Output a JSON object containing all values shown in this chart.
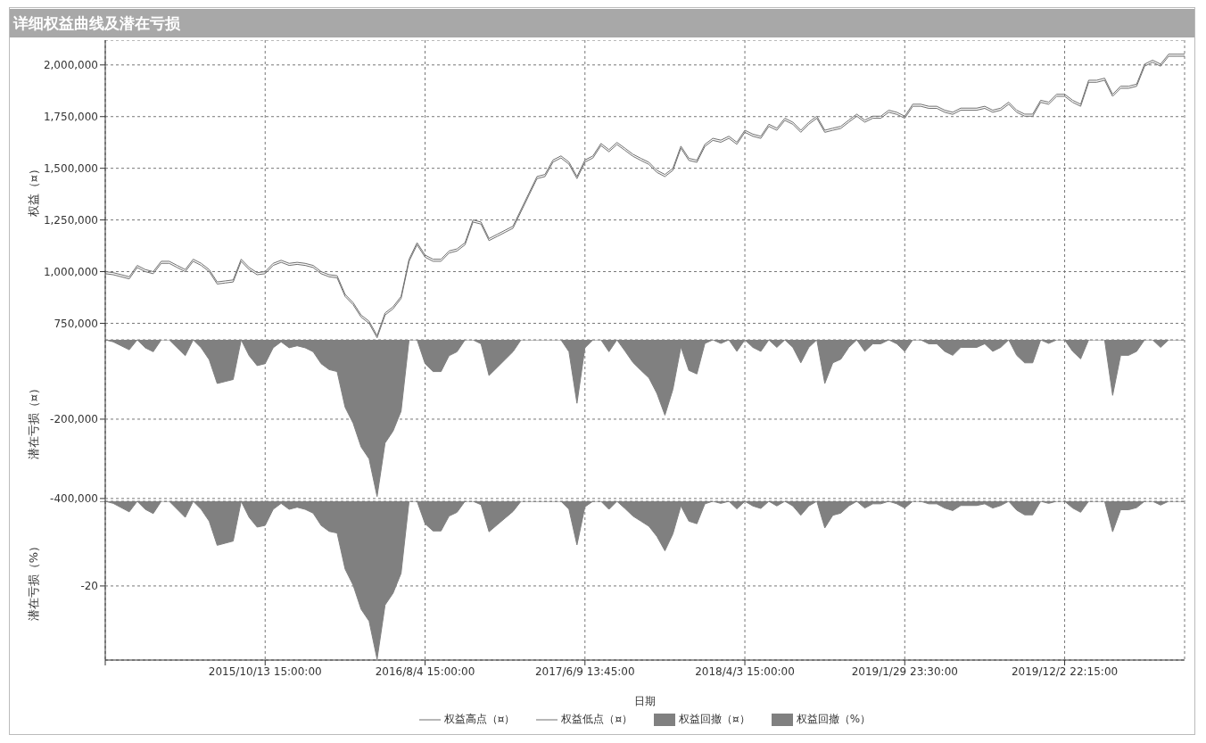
{
  "chart_data": [
    {
      "type": "line",
      "title": "详细权益曲线及潜在亏损",
      "ylabel": "权益（¤）",
      "grid": true,
      "legend": "bottom",
      "tick_labels": "y",
      "ylim": [
        670000,
        2120000
      ],
      "yticks": [
        {
          "value": 750000,
          "label": "750,000"
        },
        {
          "value": 1000000,
          "label": "1,000,000"
        },
        {
          "value": 1250000,
          "label": "1,250,000"
        },
        {
          "value": 1500000,
          "label": "1,500,000"
        },
        {
          "value": 1750000,
          "label": "1,750,000"
        },
        {
          "value": 2000000,
          "label": "2,000,000"
        }
      ],
      "categories": [
        null,
        null,
        null,
        null,
        null,
        null,
        null,
        null,
        null,
        null,
        null,
        null,
        null,
        null,
        null,
        null,
        null,
        null,
        null,
        null,
        "2015/10/13 15:00:00",
        null,
        null,
        null,
        null,
        null,
        null,
        null,
        null,
        null,
        null,
        null,
        null,
        null,
        null,
        null,
        null,
        null,
        null,
        null,
        "2016/8/4 15:00:00",
        null,
        null,
        null,
        null,
        null,
        null,
        null,
        null,
        null,
        null,
        null,
        null,
        null,
        null,
        null,
        null,
        null,
        null,
        null,
        "2017/6/9 13:45:00",
        null,
        null,
        null,
        null,
        null,
        null,
        null,
        null,
        null,
        null,
        null,
        null,
        null,
        null,
        null,
        null,
        null,
        null,
        null,
        "2018/4/3 15:00:00",
        null,
        null,
        null,
        null,
        null,
        null,
        null,
        null,
        null,
        null,
        null,
        null,
        null,
        null,
        null,
        null,
        null,
        null,
        null,
        "2019/1/29 23:30:00",
        null,
        null,
        null,
        null,
        null,
        null,
        null,
        null,
        null,
        null,
        null,
        null,
        null,
        null,
        null,
        null,
        null,
        null,
        null,
        "2019/12/2 22:15:00",
        null,
        null,
        null,
        null,
        null,
        null,
        null,
        null,
        null,
        null,
        null,
        null,
        null,
        null,
        null
      ],
      "series": [
        {
          "name": "权益高点（¤）",
          "color": "#707070",
          "values": [
            1000000,
            995000,
            985000,
            975000,
            1030000,
            1010000,
            1000000,
            1050000,
            1050000,
            1030000,
            1010000,
            1060000,
            1040000,
            1010000,
            950000,
            955000,
            960000,
            1060000,
            1020000,
            995000,
            1000000,
            1040000,
            1055000,
            1040000,
            1045000,
            1040000,
            1030000,
            1000000,
            985000,
            980000,
            890000,
            850000,
            790000,
            760000,
            690000,
            800000,
            830000,
            880000,
            1060000,
            1140000,
            1080000,
            1060000,
            1060000,
            1100000,
            1110000,
            1140000,
            1250000,
            1240000,
            1160000,
            1180000,
            1200000,
            1220000,
            1300000,
            1380000,
            1460000,
            1470000,
            1540000,
            1560000,
            1530000,
            1460000,
            1540000,
            1560000,
            1620000,
            1590000,
            1625000,
            1597000,
            1568000,
            1548000,
            1529000,
            1490000,
            1470000,
            1500000,
            1607000,
            1548000,
            1539000,
            1616000,
            1645000,
            1636000,
            1655000,
            1626000,
            1684000,
            1665000,
            1655000,
            1713000,
            1694000,
            1742000,
            1723000,
            1684000,
            1723000,
            1752000,
            1684000,
            1694000,
            1703000,
            1733000,
            1762000,
            1733000,
            1752000,
            1752000,
            1781000,
            1771000,
            1752000,
            1810000,
            1810000,
            1800000,
            1800000,
            1781000,
            1771000,
            1791000,
            1791000,
            1791000,
            1800000,
            1781000,
            1791000,
            1820000,
            1781000,
            1762000,
            1762000,
            1829000,
            1820000,
            1858000,
            1858000,
            1829000,
            1810000,
            1926000,
            1926000,
            1936000,
            1858000,
            1897000,
            1897000,
            1907000,
            2004000,
            2023000,
            2004000,
            2052000,
            2052000,
            2052000
          ]
        },
        {
          "name": "权益低点（¤）",
          "color": "#707070",
          "values": [
            990000,
            985000,
            975000,
            965000,
            1020000,
            1000000,
            990000,
            1040000,
            1040000,
            1020000,
            1000000,
            1050000,
            1030000,
            1000000,
            940000,
            945000,
            950000,
            1050000,
            1010000,
            985000,
            990000,
            1030000,
            1045000,
            1030000,
            1035000,
            1030000,
            1020000,
            990000,
            975000,
            970000,
            880000,
            840000,
            780000,
            750000,
            680000,
            790000,
            820000,
            870000,
            1050000,
            1130000,
            1070000,
            1050000,
            1050000,
            1090000,
            1100000,
            1130000,
            1240000,
            1230000,
            1150000,
            1170000,
            1190000,
            1210000,
            1290000,
            1370000,
            1450000,
            1460000,
            1530000,
            1550000,
            1520000,
            1450000,
            1530000,
            1550000,
            1610000,
            1580000,
            1615000,
            1587000,
            1558000,
            1538000,
            1519000,
            1480000,
            1460000,
            1490000,
            1597000,
            1538000,
            1529000,
            1606000,
            1635000,
            1626000,
            1645000,
            1616000,
            1674000,
            1655000,
            1645000,
            1703000,
            1684000,
            1732000,
            1713000,
            1674000,
            1713000,
            1742000,
            1674000,
            1684000,
            1693000,
            1723000,
            1752000,
            1723000,
            1742000,
            1742000,
            1771000,
            1761000,
            1742000,
            1800000,
            1800000,
            1790000,
            1790000,
            1771000,
            1761000,
            1781000,
            1781000,
            1781000,
            1790000,
            1771000,
            1781000,
            1810000,
            1771000,
            1752000,
            1752000,
            1819000,
            1810000,
            1848000,
            1848000,
            1819000,
            1800000,
            1916000,
            1916000,
            1926000,
            1848000,
            1887000,
            1887000,
            1897000,
            1994000,
            2013000,
            1994000,
            2042000,
            2042000,
            2042000
          ]
        }
      ]
    },
    {
      "type": "area",
      "ylabel": "潜在亏损（¤）",
      "grid": true,
      "legend": "bottom",
      "tick_labels": "y",
      "ylim": [
        -407000,
        0
      ],
      "yticks": [
        {
          "value": -400000,
          "label": "-400,000"
        },
        {
          "value": -200000,
          "label": "-200,000"
        }
      ],
      "categories": [
        null,
        null,
        null,
        null,
        null,
        null,
        null,
        null,
        null,
        null,
        null,
        null,
        null,
        null,
        null,
        null,
        null,
        null,
        null,
        null,
        "2015/10/13 15:00:00",
        null,
        null,
        null,
        null,
        null,
        null,
        null,
        null,
        null,
        null,
        null,
        null,
        null,
        null,
        null,
        null,
        null,
        null,
        null,
        "2016/8/4 15:00:00",
        null,
        null,
        null,
        null,
        null,
        null,
        null,
        null,
        null,
        null,
        null,
        null,
        null,
        null,
        null,
        null,
        null,
        null,
        null,
        "2017/6/9 13:45:00",
        null,
        null,
        null,
        null,
        null,
        null,
        null,
        null,
        null,
        null,
        null,
        null,
        null,
        null,
        null,
        null,
        null,
        null,
        null,
        "2018/4/3 15:00:00",
        null,
        null,
        null,
        null,
        null,
        null,
        null,
        null,
        null,
        null,
        null,
        null,
        null,
        null,
        null,
        null,
        null,
        null,
        null,
        "2019/1/29 23:30:00",
        null,
        null,
        null,
        null,
        null,
        null,
        null,
        null,
        null,
        null,
        null,
        null,
        null,
        null,
        null,
        null,
        null,
        null,
        null,
        "2019/12/2 22:15:00",
        null,
        null,
        null,
        null,
        null,
        null,
        null,
        null,
        null,
        null,
        null,
        null,
        null,
        null,
        null
      ],
      "series": [
        {
          "name": "权益回撤（¤）",
          "color": "#808080",
          "values": [
            0,
            -5000,
            -15000,
            -25000,
            0,
            -20000,
            -30000,
            0,
            0,
            -20000,
            -40000,
            0,
            -20000,
            -50000,
            -110000,
            -105000,
            -100000,
            0,
            -40000,
            -65000,
            -60000,
            -20000,
            -5000,
            -20000,
            -15000,
            -20000,
            -30000,
            -60000,
            -75000,
            -80000,
            -170000,
            -210000,
            -270000,
            -300000,
            -395000,
            -260000,
            -230000,
            -180000,
            0,
            0,
            -60000,
            -80000,
            -80000,
            -40000,
            -30000,
            0,
            0,
            -10000,
            -90000,
            -70000,
            -50000,
            -30000,
            0,
            0,
            0,
            0,
            0,
            0,
            -30000,
            -160000,
            -20000,
            0,
            0,
            -30000,
            0,
            -28000,
            -57000,
            -77000,
            -96000,
            -135000,
            -190000,
            -125000,
            -18000,
            -77000,
            -86000,
            -9000,
            0,
            -9000,
            0,
            -29000,
            0,
            -19000,
            -29000,
            0,
            -19000,
            0,
            -19000,
            -58000,
            -19000,
            0,
            -110000,
            -58000,
            -49000,
            -19000,
            0,
            -29000,
            -10000,
            -10000,
            0,
            -10000,
            -29000,
            0,
            0,
            -10000,
            -10000,
            -29000,
            -39000,
            -19000,
            -19000,
            -19000,
            -10000,
            -29000,
            -19000,
            0,
            -39000,
            -58000,
            -58000,
            0,
            -9000,
            0,
            0,
            -29000,
            -48000,
            0,
            0,
            0,
            -140000,
            -39000,
            -39000,
            -29000,
            0,
            0,
            -19000,
            0,
            0,
            0
          ]
        }
      ]
    },
    {
      "type": "area",
      "ylabel": "潜在亏损（%）",
      "xlabel": "日期",
      "grid": true,
      "legend": "bottom",
      "ylim": [
        -37.5,
        0
      ],
      "yticks": [
        {
          "value": 0,
          "label": null
        },
        -20
      ],
      "categories": [
        null,
        null,
        null,
        null,
        null,
        null,
        null,
        null,
        null,
        null,
        null,
        null,
        null,
        null,
        null,
        null,
        null,
        null,
        null,
        null,
        "2015/10/13 15:00:00",
        null,
        null,
        null,
        null,
        null,
        null,
        null,
        null,
        null,
        null,
        null,
        null,
        null,
        null,
        null,
        null,
        null,
        null,
        null,
        "2016/8/4 15:00:00",
        null,
        null,
        null,
        null,
        null,
        null,
        null,
        null,
        null,
        null,
        null,
        null,
        null,
        null,
        null,
        null,
        null,
        null,
        null,
        "2017/6/9 13:45:00",
        null,
        null,
        null,
        null,
        null,
        null,
        null,
        null,
        null,
        null,
        null,
        null,
        null,
        null,
        null,
        null,
        null,
        null,
        null,
        "2018/4/3 15:00:00",
        null,
        null,
        null,
        null,
        null,
        null,
        null,
        null,
        null,
        null,
        null,
        null,
        null,
        null,
        null,
        null,
        null,
        null,
        null,
        "2019/1/29 23:30:00",
        null,
        null,
        null,
        null,
        null,
        null,
        null,
        null,
        null,
        null,
        null,
        null,
        null,
        null,
        null,
        null,
        null,
        null,
        null,
        "2019/12/2 22:15:00",
        null,
        null,
        null,
        null,
        null,
        null,
        null,
        null,
        null,
        null,
        null,
        null,
        null,
        null,
        null
      ],
      "series": [
        {
          "name": "权益回撤（%）",
          "color": "#808080",
          "values": [
            0,
            -0.5,
            -1.5,
            -2.5,
            0,
            -1.9,
            -2.9,
            0,
            0,
            -1.9,
            -3.8,
            0,
            -1.9,
            -4.7,
            -10.4,
            -9.9,
            -9.4,
            0,
            -3.8,
            -6.1,
            -5.7,
            -1.9,
            -0.5,
            -1.9,
            -1.4,
            -1.9,
            -2.8,
            -5.7,
            -7.1,
            -7.5,
            -16,
            -19.8,
            -25.5,
            -28.3,
            -37.3,
            -24.5,
            -21.7,
            -17,
            0,
            0,
            -5.3,
            -7,
            -7,
            -3.5,
            -2.6,
            0,
            0,
            -0.8,
            -7.2,
            -5.6,
            -4,
            -2.4,
            0,
            0,
            0,
            0,
            0,
            0,
            -1.9,
            -10.3,
            -1.3,
            0,
            0,
            -1.9,
            0,
            -1.7,
            -3.5,
            -4.7,
            -5.9,
            -8.3,
            -11.7,
            -7.7,
            -1.1,
            -4.7,
            -5.3,
            -0.6,
            0,
            -0.5,
            0,
            -1.8,
            0,
            -1.1,
            -1.7,
            0,
            -1.1,
            0,
            -1.1,
            -3.3,
            -1.1,
            0,
            -6.3,
            -3.3,
            -2.8,
            -1.1,
            0,
            -1.6,
            -0.6,
            -0.6,
            0,
            -0.6,
            -1.6,
            0,
            0,
            -0.6,
            -0.6,
            -1.6,
            -2.2,
            -1,
            -1,
            -1,
            -0.6,
            -1.6,
            -1,
            0,
            -2.1,
            -3.2,
            -3.2,
            0,
            -0.5,
            0,
            0,
            -1.6,
            -2.6,
            0,
            0,
            0,
            -7.2,
            -2,
            -2,
            -1.5,
            0,
            0,
            -0.9,
            0,
            0,
            0
          ]
        }
      ]
    }
  ]
}
